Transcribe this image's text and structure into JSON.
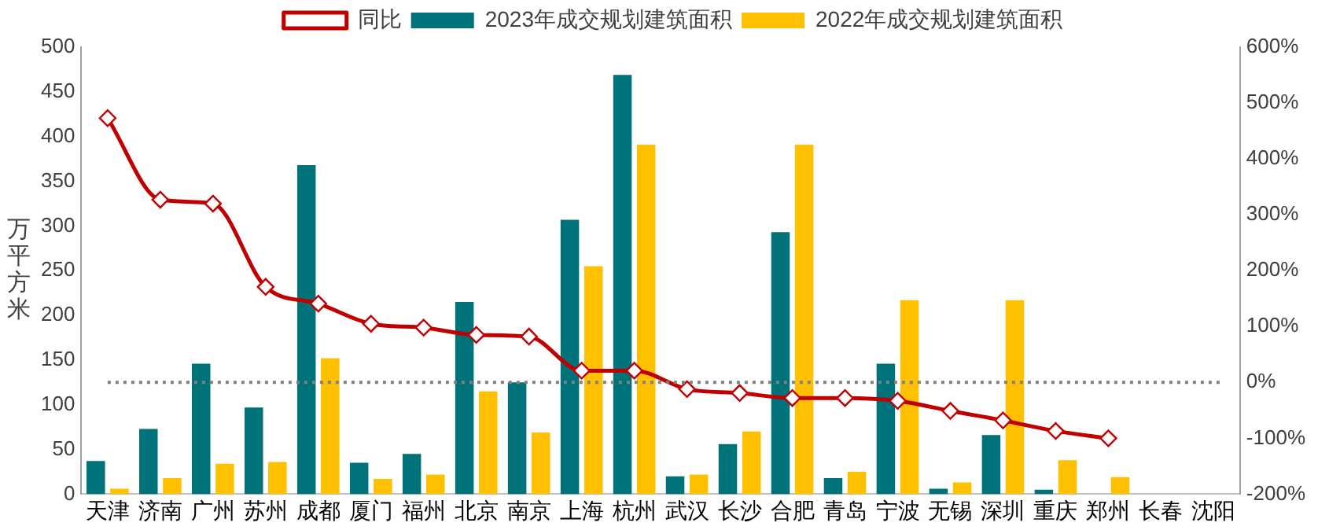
{
  "chart_data": {
    "type": "bar",
    "ylabel": "万平方米",
    "categories": [
      "天津",
      "济南",
      "广州",
      "苏州",
      "成都",
      "厦门",
      "福州",
      "北京",
      "南京",
      "上海",
      "杭州",
      "武汉",
      "长沙",
      "合肥",
      "青岛",
      "宁波",
      "无锡",
      "深圳",
      "重庆",
      "郑州",
      "长春",
      "沈阳"
    ],
    "series": [
      {
        "name": "2023年成交规划建筑面积",
        "color": "#00727a",
        "values": [
          37,
          73,
          146,
          97,
          368,
          35,
          45,
          215,
          125,
          307,
          469,
          20,
          56,
          293,
          18,
          146,
          6,
          66,
          5,
          null,
          null,
          null
        ]
      },
      {
        "name": "2022年成交规划建筑面积",
        "color": "#ffc000",
        "values": [
          6,
          18,
          34,
          36,
          152,
          17,
          22,
          115,
          69,
          255,
          391,
          22,
          70,
          391,
          25,
          217,
          13,
          217,
          38,
          19,
          null,
          null
        ]
      },
      {
        "name": "同比",
        "type": "line",
        "axis": "y2",
        "color": "#c00000",
        "marker": "diamond",
        "values": [
          473,
          327,
          320,
          171,
          141,
          105,
          98,
          85,
          82,
          21,
          21,
          -12,
          -19,
          -28,
          -28,
          -33,
          -51,
          -68,
          -87,
          -100,
          null,
          null
        ]
      }
    ],
    "ylim": [
      0,
      500
    ],
    "yticks": [
      0,
      50,
      100,
      150,
      200,
      250,
      300,
      350,
      400,
      450,
      500
    ],
    "y2lim": [
      -200,
      600
    ],
    "y2ticks": [
      {
        "value": -200,
        "label": "-200%"
      },
      {
        "value": -100,
        "label": "-100%"
      },
      {
        "value": 0,
        "label": "0%"
      },
      {
        "value": 100,
        "label": "100%"
      },
      {
        "value": 200,
        "label": "200%"
      },
      {
        "value": 300,
        "label": "300%"
      },
      {
        "value": 400,
        "label": "400%"
      },
      {
        "value": 500,
        "label": "500%"
      },
      {
        "value": 600,
        "label": "600%"
      }
    ],
    "ref_lines": [
      {
        "axis": "y2",
        "value": 0,
        "color": "#808080",
        "line_style": "dotted"
      }
    ],
    "grid": false,
    "legend": "top"
  }
}
